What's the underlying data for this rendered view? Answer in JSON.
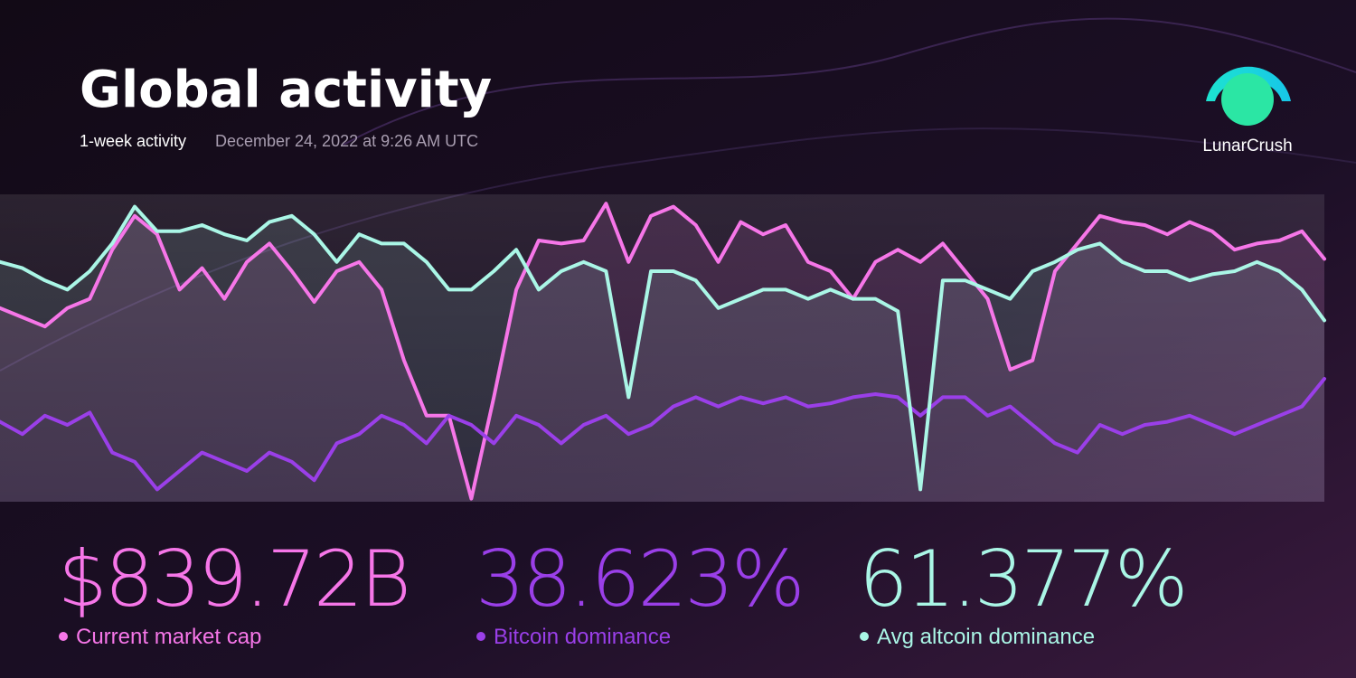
{
  "header": {
    "title": "Global activity",
    "subtitle": "1-week activity",
    "timestamp": "December 24, 2022 at 9:26 AM UTC"
  },
  "logo": {
    "label": "LunarCrush"
  },
  "chart_data": {
    "type": "line",
    "ylim": [
      0,
      100
    ],
    "series": [
      {
        "name": "Current market cap",
        "headline": "$839.72B",
        "color": "#f676e8",
        "values": [
          63,
          60,
          57,
          63,
          66,
          82,
          93,
          87,
          69,
          76,
          66,
          78,
          84,
          75,
          65,
          75,
          78,
          69,
          46,
          28,
          28,
          1,
          34,
          69,
          85,
          84,
          85,
          97,
          78,
          93,
          96,
          90,
          78,
          91,
          87,
          90,
          78,
          75,
          66,
          78,
          82,
          78,
          84,
          75,
          66,
          43,
          46,
          75,
          84,
          93,
          91,
          90,
          87,
          91,
          88,
          82,
          84,
          85,
          88,
          79
        ]
      },
      {
        "name": "Bitcoin dominance",
        "headline": "38.623%",
        "color": "#9a3fe8",
        "values": [
          26,
          22,
          28,
          25,
          29,
          16,
          13,
          4,
          10,
          16,
          13,
          10,
          16,
          13,
          7,
          19,
          22,
          28,
          25,
          19,
          28,
          25,
          19,
          28,
          25,
          19,
          25,
          28,
          22,
          25,
          31,
          34,
          31,
          34,
          32,
          34,
          31,
          32,
          34,
          35,
          34,
          28,
          34,
          34,
          28,
          31,
          25,
          19,
          16,
          25,
          22,
          25,
          26,
          28,
          25,
          22,
          25,
          28,
          31,
          40
        ]
      },
      {
        "name": "Avg altcoin dominance",
        "headline": "61.377%",
        "color": "#aaf6e6",
        "values": [
          78,
          76,
          72,
          69,
          75,
          84,
          96,
          88,
          88,
          90,
          87,
          85,
          91,
          93,
          87,
          78,
          87,
          84,
          84,
          78,
          69,
          69,
          75,
          82,
          69,
          75,
          78,
          75,
          34,
          75,
          75,
          72,
          63,
          66,
          69,
          69,
          66,
          69,
          66,
          66,
          62,
          4,
          72,
          72,
          69,
          66,
          75,
          78,
          82,
          84,
          78,
          75,
          75,
          72,
          74,
          75,
          78,
          75,
          69,
          59
        ]
      }
    ]
  }
}
